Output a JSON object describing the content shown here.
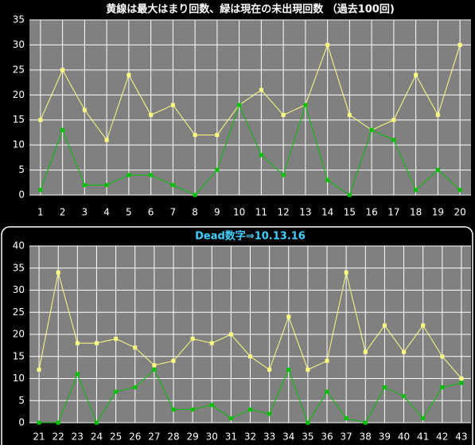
{
  "chart_data": [
    {
      "type": "line",
      "title": "黄線は最大はまり回数、緑は現在の未出現回数 （過去100回)",
      "title_color": "#ffffff",
      "categories": [
        1,
        2,
        3,
        4,
        5,
        6,
        7,
        8,
        9,
        10,
        11,
        12,
        13,
        14,
        15,
        16,
        17,
        18,
        19,
        20
      ],
      "series": [
        {
          "color": "#ffff80",
          "values": [
            15,
            25,
            17,
            11,
            24,
            16,
            18,
            12,
            12,
            18,
            21,
            16,
            18,
            30,
            16,
            13,
            15,
            24,
            16,
            30
          ]
        },
        {
          "color": "#00c000",
          "values": [
            1,
            13,
            2,
            2,
            4,
            4,
            2,
            0,
            5,
            18,
            8,
            4,
            18,
            3,
            0,
            13,
            11,
            1,
            5,
            1
          ]
        }
      ],
      "ylim": [
        0,
        35
      ],
      "yticks": [
        0,
        5,
        10,
        15,
        20,
        25,
        30,
        35
      ],
      "grid": true
    },
    {
      "type": "line",
      "title": "Dead数字⇒10.13.16",
      "title_color": "#40d0ff",
      "categories": [
        21,
        22,
        23,
        24,
        25,
        26,
        27,
        28,
        29,
        30,
        31,
        32,
        33,
        34,
        35,
        36,
        37,
        38,
        39,
        40,
        41,
        42,
        43
      ],
      "series": [
        {
          "color": "#ffff80",
          "values": [
            12,
            34,
            18,
            18,
            19,
            17,
            13,
            14,
            19,
            18,
            20,
            15,
            12,
            24,
            12,
            14,
            34,
            16,
            22,
            16,
            22,
            15,
            10
          ]
        },
        {
          "color": "#00c000",
          "values": [
            0,
            0,
            11,
            0,
            7,
            8,
            12,
            3,
            3,
            4,
            1,
            3,
            2,
            12,
            0,
            7,
            1,
            0,
            8,
            6,
            1,
            8,
            9
          ]
        }
      ],
      "ylim": [
        0,
        40
      ],
      "yticks": [
        0,
        5,
        10,
        15,
        20,
        25,
        30,
        35,
        40
      ],
      "grid": true
    }
  ]
}
